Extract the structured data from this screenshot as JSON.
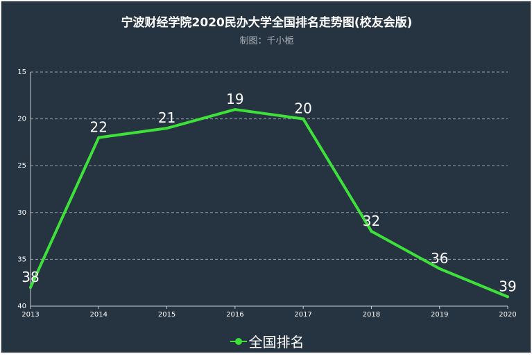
{
  "chart_data": {
    "type": "line",
    "title": "宁波财经学院2020民办大学全国排名走势图(校友会版)",
    "subtitle": "制图：千小栀",
    "categories": [
      "2013",
      "2014",
      "2015",
      "2016",
      "2017",
      "2018",
      "2019",
      "2020"
    ],
    "series": [
      {
        "name": "全国排名",
        "values": [
          38,
          22,
          21,
          19,
          20,
          32,
          36,
          39
        ],
        "color": "#3ee03a"
      }
    ],
    "y_inverted": true,
    "ylim": [
      15,
      40
    ],
    "yticks": [
      15,
      20,
      25,
      30,
      35,
      40
    ],
    "grid": true,
    "legend": "bottom-center",
    "background": "#263340"
  }
}
